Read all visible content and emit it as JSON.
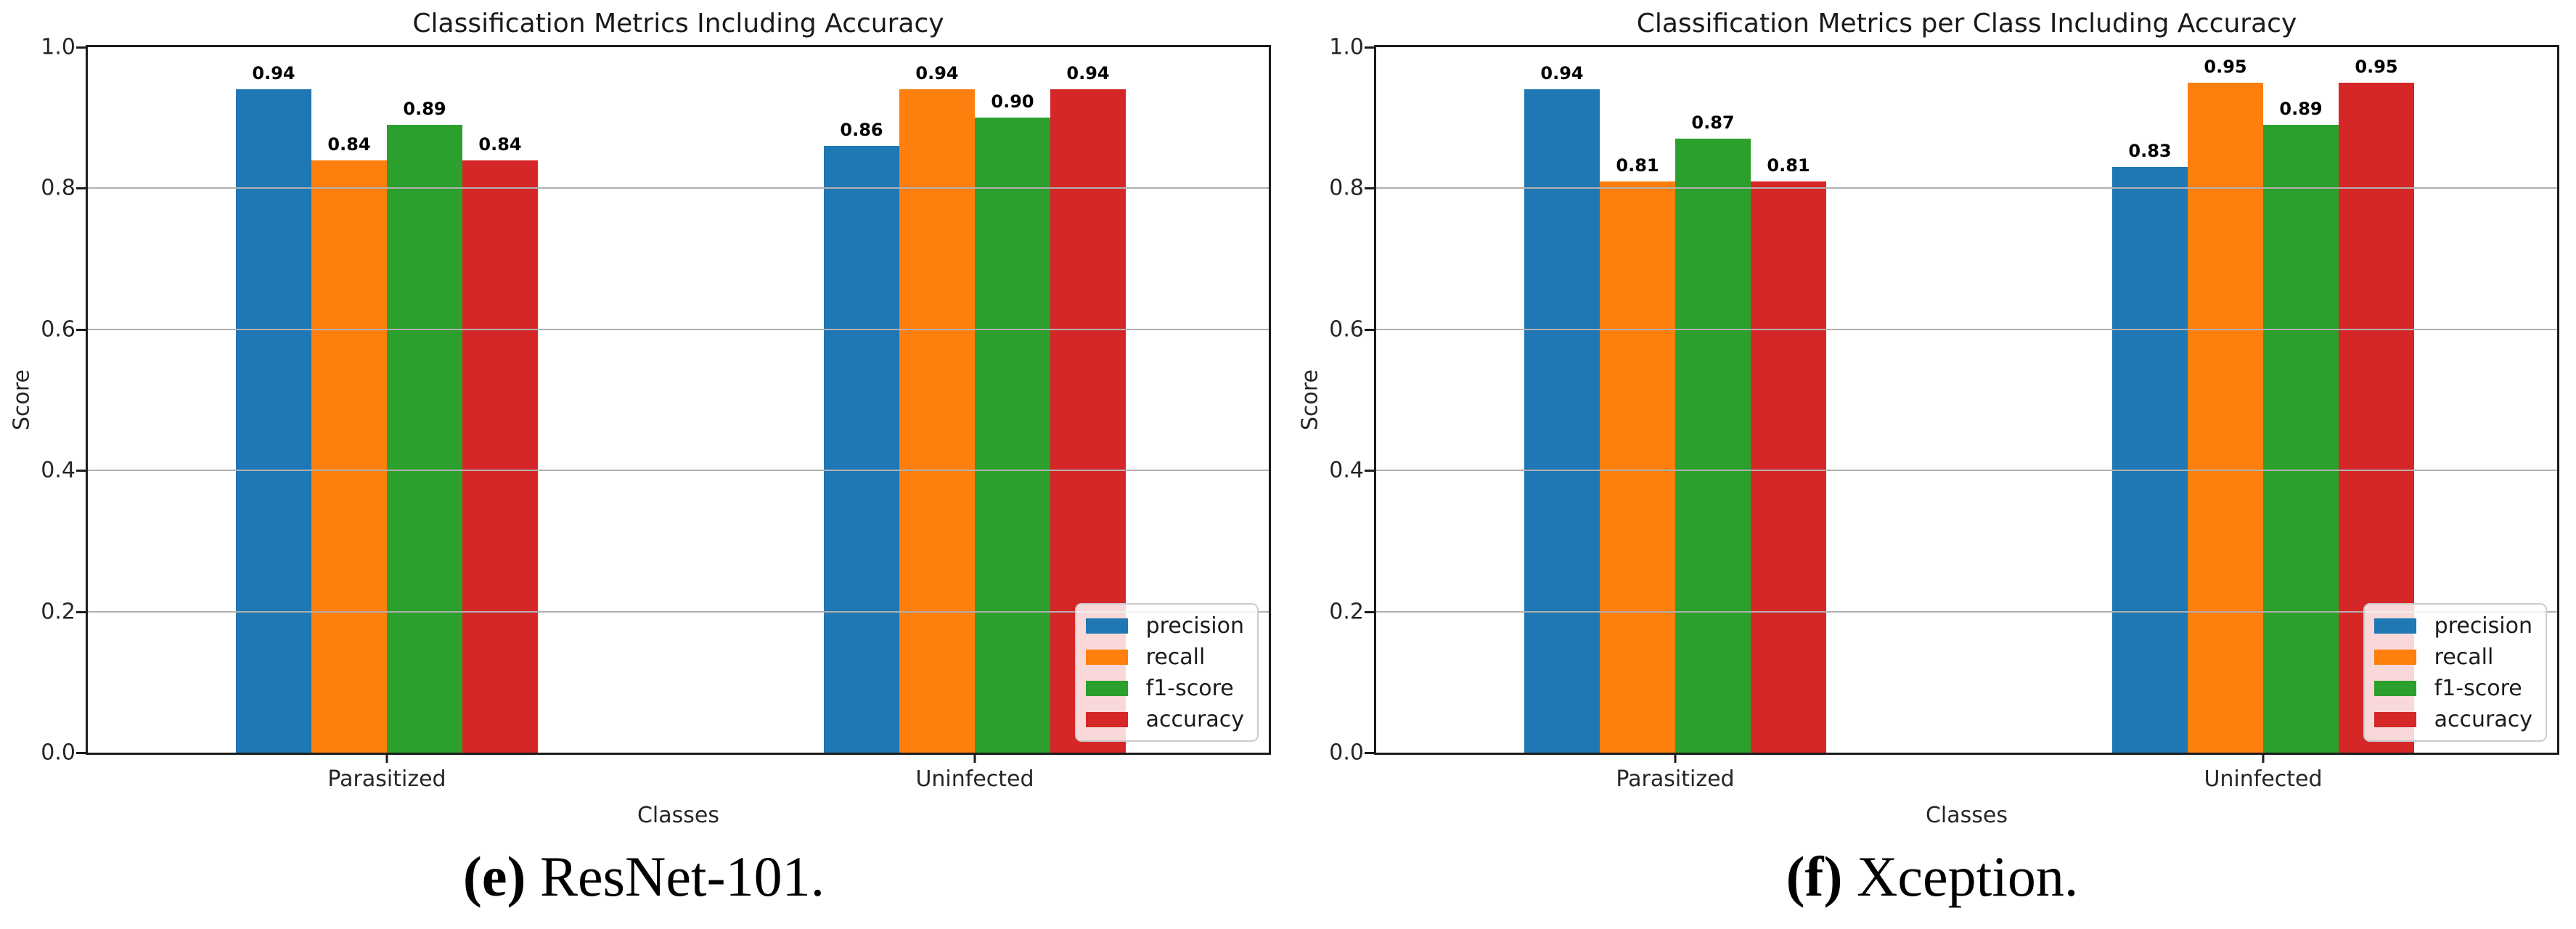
{
  "chart_data": [
    {
      "type": "bar",
      "title": "Classification Metrics Including Accuracy",
      "xlabel": "Classes",
      "ylabel": "Score",
      "categories": [
        "Parasitized",
        "Uninfected"
      ],
      "series": [
        {
          "name": "precision",
          "color": "#1f77b4",
          "values": [
            0.94,
            0.86
          ],
          "labels": [
            "0.94",
            "0.86"
          ]
        },
        {
          "name": "recall",
          "color": "#ff7f0e",
          "values": [
            0.84,
            0.94
          ],
          "labels": [
            "0.84",
            "0.94"
          ]
        },
        {
          "name": "f1-score",
          "color": "#2ca02c",
          "values": [
            0.89,
            0.9
          ],
          "labels": [
            "0.89",
            "0.90"
          ]
        },
        {
          "name": "accuracy",
          "color": "#d62728",
          "values": [
            0.84,
            0.94
          ],
          "labels": [
            "0.84",
            "0.94"
          ]
        }
      ],
      "ylim": [
        0.0,
        1.0
      ],
      "yticks": [
        "0.0",
        "0.2",
        "0.4",
        "0.6",
        "0.8",
        "1.0"
      ],
      "grid": true,
      "legend_position": "lower right",
      "caption": {
        "open": "(",
        "letter": "e",
        "close": ")",
        "text": " ResNet-101."
      }
    },
    {
      "type": "bar",
      "title": "Classification Metrics per Class Including Accuracy",
      "xlabel": "Classes",
      "ylabel": "Score",
      "categories": [
        "Parasitized",
        "Uninfected"
      ],
      "series": [
        {
          "name": "precision",
          "color": "#1f77b4",
          "values": [
            0.94,
            0.83
          ],
          "labels": [
            "0.94",
            "0.83"
          ]
        },
        {
          "name": "recall",
          "color": "#ff7f0e",
          "values": [
            0.81,
            0.95
          ],
          "labels": [
            "0.81",
            "0.95"
          ]
        },
        {
          "name": "f1-score",
          "color": "#2ca02c",
          "values": [
            0.87,
            0.89
          ],
          "labels": [
            "0.87",
            "0.89"
          ]
        },
        {
          "name": "accuracy",
          "color": "#d62728",
          "values": [
            0.81,
            0.95
          ],
          "labels": [
            "0.81",
            "0.95"
          ]
        }
      ],
      "ylim": [
        0.0,
        1.0
      ],
      "yticks": [
        "0.0",
        "0.2",
        "0.4",
        "0.6",
        "0.8",
        "1.0"
      ],
      "grid": true,
      "legend_position": "lower right",
      "caption": {
        "open": "(",
        "letter": "f",
        "close": ")",
        "text": " Xception."
      }
    }
  ],
  "style": {
    "grid_color": "#b0b0b0",
    "spine_color": "#1c1c1c",
    "legend_border_color": "#cccccc"
  }
}
